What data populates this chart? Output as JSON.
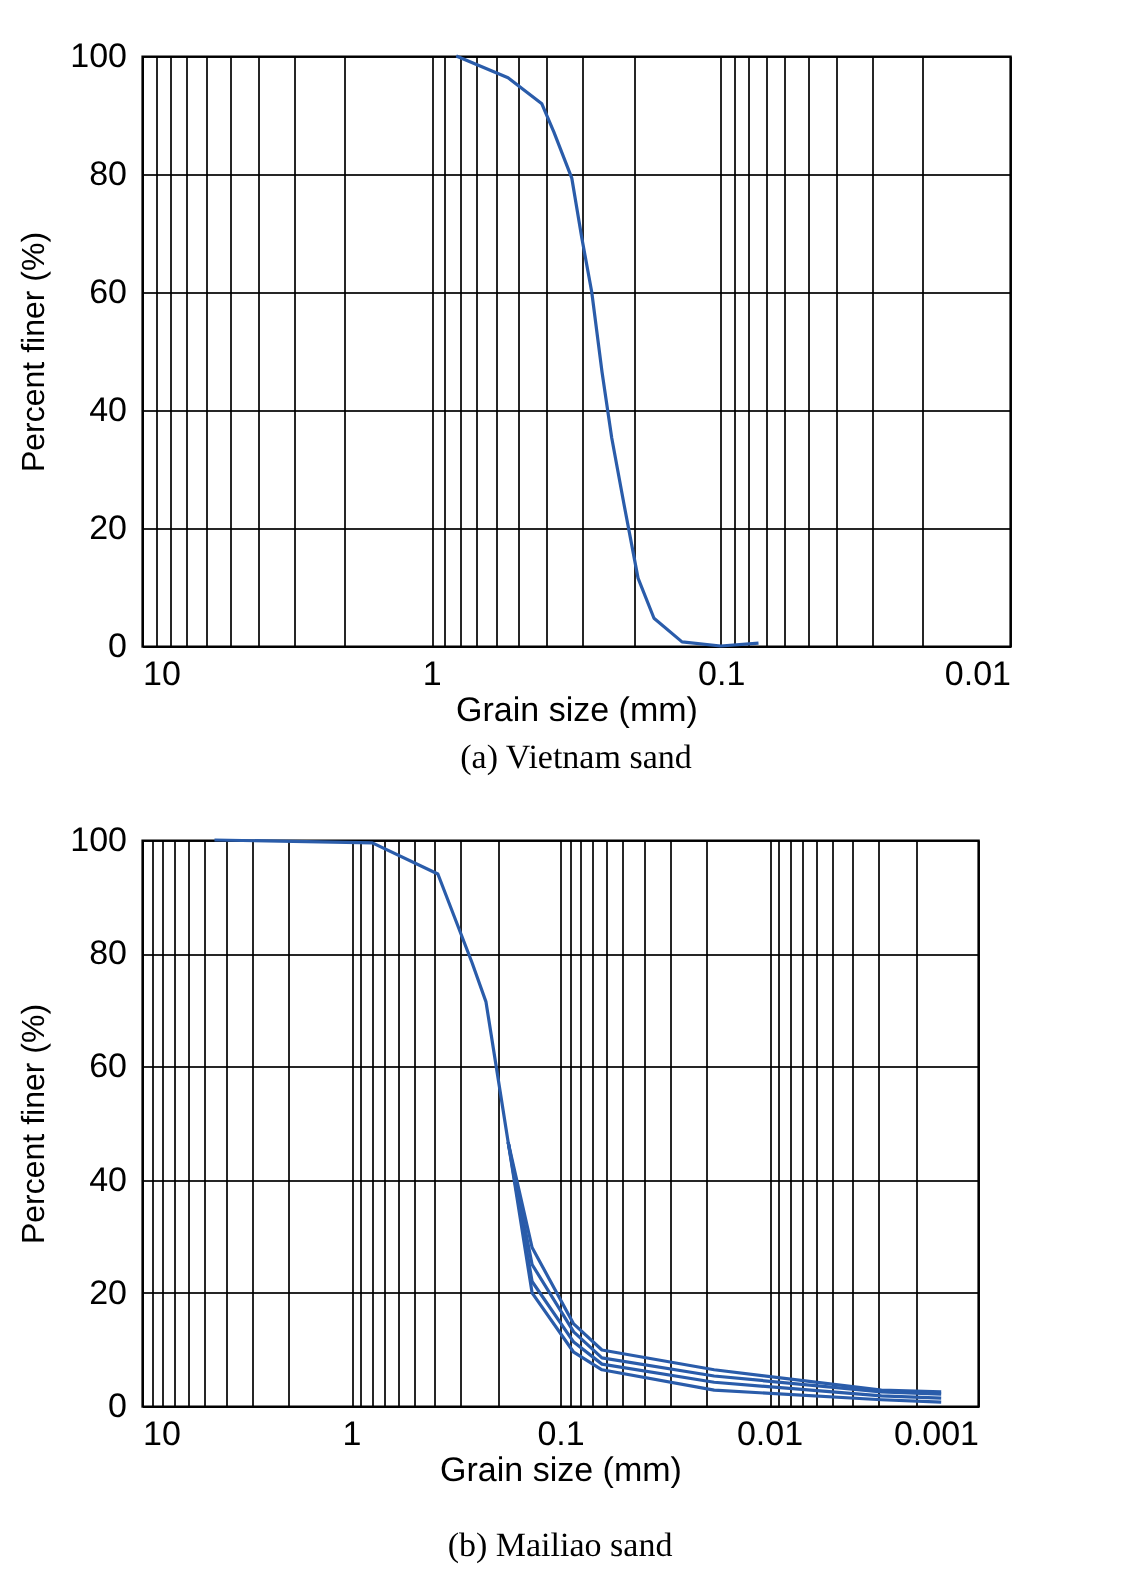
{
  "chart_data": [
    {
      "type": "line",
      "title": "(a) Vietnam sand",
      "xlabel": "Grain size (mm)",
      "ylabel": "Percent finer (%)",
      "log": "x",
      "grid": true,
      "xlim": [
        10,
        0.01
      ],
      "xticks": [
        10,
        1,
        0.1,
        0.01
      ],
      "ylim": [
        0,
        100
      ],
      "yticks": [
        0,
        20,
        40,
        60,
        80,
        100
      ],
      "x": [
        0.82,
        0.543,
        0.415,
        0.377,
        0.327,
        0.302,
        0.279,
        0.257,
        0.238,
        0.216,
        0.193,
        0.17,
        0.136,
        0.1,
        0.074
      ],
      "series": [
        {
          "color": "#2a5caa",
          "values": [
            100,
            96.3,
            91.9,
            87.1,
            79.3,
            69.2,
            60,
            46.4,
            35.3,
            24.1,
            11.5,
            4.7,
            0.7,
            0,
            0.5
          ]
        }
      ]
    },
    {
      "type": "line",
      "title": "(b) Mailiao sand",
      "xlabel": "Grain size (mm)",
      "ylabel": "Percent finer (%)",
      "log": "x",
      "grid": true,
      "xlim": [
        10,
        0.001
      ],
      "xticks": [
        10,
        1,
        0.1,
        0.01,
        0.001
      ],
      "ylim": [
        0,
        100
      ],
      "yticks": [
        0,
        20,
        40,
        60,
        80,
        100
      ],
      "x": [
        4.5,
        0.79,
        0.384,
        0.264,
        0.226,
        0.177,
        0.136,
        0.086,
        0.063,
        0.0183,
        0.0029,
        0.0015
      ],
      "series": [
        {
          "color": "#2a5caa",
          "values": [
            100,
            99.5,
            94,
            78.4,
            71.4,
            46.6,
            28,
            14.5,
            9.9,
            6.4,
            2.8,
            2.5
          ]
        },
        {
          "color": "#2a5caa",
          "x": [
            0.177,
            0.136,
            0.086,
            0.063,
            0.0183,
            0.0029,
            0.0015
          ],
          "values": [
            46.6,
            25,
            13.1,
            8.5,
            5.3,
            2.5,
            2.1
          ]
        },
        {
          "color": "#2a5caa",
          "x": [
            0.177,
            0.136,
            0.086,
            0.063,
            0.0183,
            0.0029,
            0.0015
          ],
          "values": [
            46.6,
            22,
            11.3,
            7.4,
            4.2,
            1.8,
            1.4
          ]
        },
        {
          "color": "#2a5caa",
          "x": [
            0.177,
            0.136,
            0.086,
            0.063,
            0.0183,
            0.0029,
            0.0015
          ],
          "values": [
            46.6,
            20,
            9.5,
            6.4,
            2.8,
            1.1,
            0.7
          ]
        }
      ]
    }
  ]
}
